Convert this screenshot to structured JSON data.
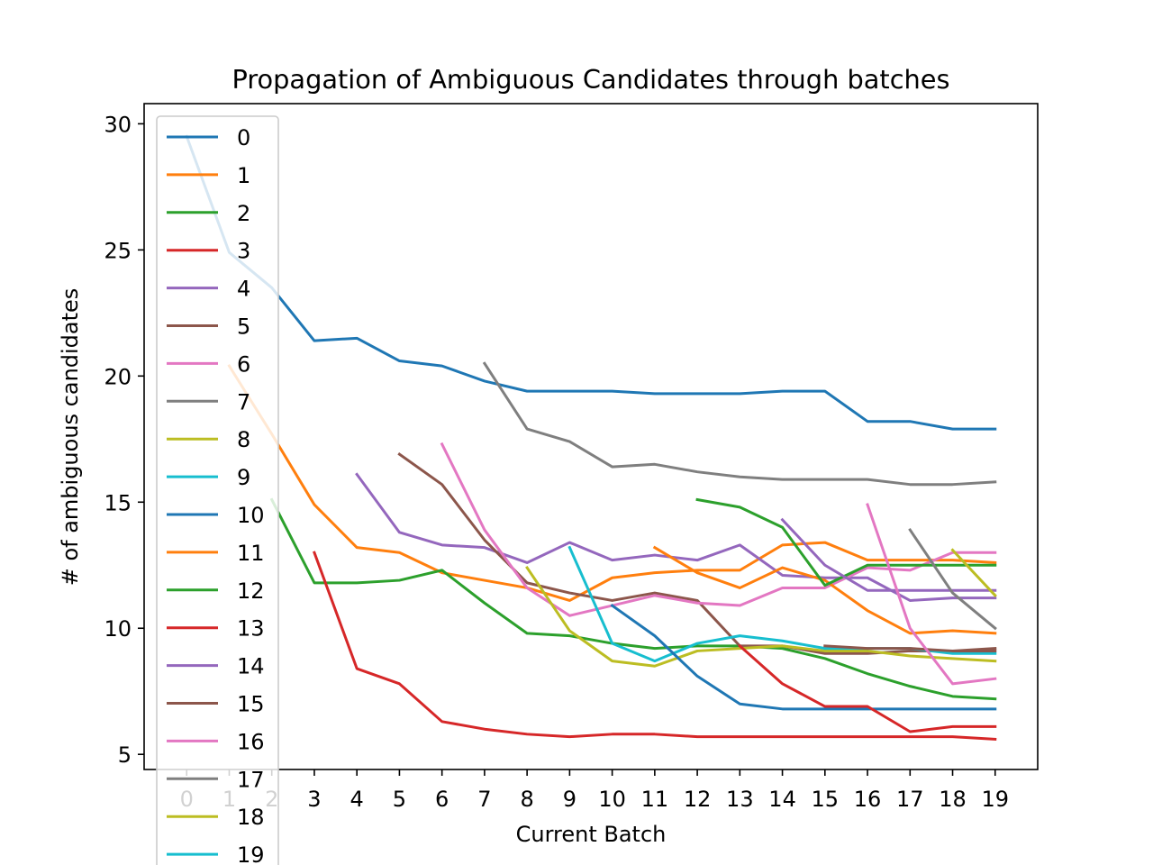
{
  "chart_data": {
    "type": "line",
    "title": "Propagation of Ambiguous Candidates through batches",
    "xlabel": "Current Batch",
    "ylabel": "# of ambiguous candidates",
    "xlim": [
      -1,
      20
    ],
    "ylim": [
      4.4,
      30.8
    ],
    "x_ticks": [
      "0",
      "1",
      "2",
      "3",
      "4",
      "5",
      "6",
      "7",
      "8",
      "9",
      "10",
      "11",
      "12",
      "13",
      "14",
      "15",
      "16",
      "17",
      "18",
      "19"
    ],
    "y_ticks": [
      5,
      10,
      15,
      20,
      25,
      30
    ],
    "grid": false,
    "legend_position": "top-left",
    "series": [
      {
        "name": "0",
        "color": "#1f77b4",
        "start": 0,
        "values": [
          29.5,
          24.9,
          23.5,
          21.4,
          21.5,
          20.6,
          20.4,
          19.8,
          19.4,
          19.4,
          19.4,
          19.3,
          19.3,
          19.3,
          19.4,
          19.4,
          18.2,
          18.2,
          17.9,
          17.9
        ]
      },
      {
        "name": "1",
        "color": "#ff7f0e",
        "start": 1,
        "values": [
          20.4,
          17.7,
          14.9,
          13.2,
          13.0,
          12.2,
          11.9,
          11.6,
          11.1,
          12.0,
          12.2,
          12.3,
          12.3,
          13.3,
          13.4,
          12.7,
          12.7,
          12.7,
          12.6
        ]
      },
      {
        "name": "2",
        "color": "#2ca02c",
        "start": 2,
        "values": [
          15.1,
          11.8,
          11.8,
          11.9,
          12.3,
          11.0,
          9.8,
          9.7,
          9.4,
          9.2,
          9.3,
          9.3,
          9.2,
          8.8,
          8.2,
          7.7,
          7.3,
          7.2
        ]
      },
      {
        "name": "3",
        "color": "#d62728",
        "start": 3,
        "values": [
          13.0,
          8.4,
          7.8,
          6.3,
          6.0,
          5.8,
          5.7,
          5.8,
          5.8,
          5.7,
          5.7,
          5.7,
          5.7,
          5.7,
          5.7,
          5.7,
          5.6
        ]
      },
      {
        "name": "4",
        "color": "#9467bd",
        "start": 4,
        "values": [
          16.1,
          13.8,
          13.3,
          13.2,
          12.6,
          13.4,
          12.7,
          12.9,
          12.7,
          13.3,
          12.1,
          12.0,
          12.0,
          11.1,
          11.2,
          11.2
        ]
      },
      {
        "name": "5",
        "color": "#8c564b",
        "start": 5,
        "values": [
          16.9,
          15.7,
          13.5,
          11.8,
          11.4,
          11.1,
          11.4,
          11.1,
          9.3,
          9.3,
          9.0,
          9.0,
          9.1,
          9.1,
          9.2
        ]
      },
      {
        "name": "6",
        "color": "#e377c2",
        "start": 6,
        "values": [
          17.3,
          13.9,
          11.6,
          10.5,
          10.9,
          11.3,
          11.0,
          10.9,
          11.6,
          11.6,
          12.4,
          12.3,
          13.0,
          13.0
        ]
      },
      {
        "name": "7",
        "color": "#7f7f7f",
        "start": 7,
        "values": [
          20.5,
          17.9,
          17.4,
          16.4,
          16.5,
          16.2,
          16.0,
          15.9,
          15.9,
          15.9,
          15.7,
          15.7,
          15.8
        ]
      },
      {
        "name": "8",
        "color": "#bcbd22",
        "start": 8,
        "values": [
          12.4,
          9.9,
          8.7,
          8.5,
          9.1,
          9.2,
          9.3,
          9.1,
          9.1,
          8.9,
          8.8,
          8.7
        ]
      },
      {
        "name": "9",
        "color": "#17becf",
        "start": 9,
        "values": [
          13.2,
          9.4,
          8.7,
          9.4,
          9.7,
          9.5,
          9.2,
          9.2,
          9.2,
          9.0,
          9.0
        ]
      },
      {
        "name": "10",
        "color": "#1f77b4",
        "start": 10,
        "values": [
          10.9,
          9.7,
          8.1,
          7.0,
          6.8,
          6.8,
          6.8,
          6.8,
          6.8,
          6.8
        ]
      },
      {
        "name": "11",
        "color": "#ff7f0e",
        "start": 11,
        "values": [
          13.2,
          12.2,
          11.6,
          12.4,
          11.9,
          10.7,
          9.8,
          9.9,
          9.8
        ]
      },
      {
        "name": "12",
        "color": "#2ca02c",
        "start": 12,
        "values": [
          15.1,
          14.8,
          14.0,
          11.7,
          12.5,
          12.5,
          12.5,
          12.5
        ]
      },
      {
        "name": "13",
        "color": "#d62728",
        "start": 13,
        "values": [
          9.3,
          7.8,
          6.9,
          6.9,
          5.9,
          6.1,
          6.1
        ]
      },
      {
        "name": "14",
        "color": "#9467bd",
        "start": 14,
        "values": [
          14.3,
          12.5,
          11.5,
          11.5,
          11.5,
          11.5
        ]
      },
      {
        "name": "15",
        "color": "#8c564b",
        "start": 15,
        "values": [
          9.3,
          9.2,
          9.2,
          9.1,
          9.1
        ]
      },
      {
        "name": "16",
        "color": "#e377c2",
        "start": 16,
        "values": [
          14.9,
          10.0,
          7.8,
          8.0
        ]
      },
      {
        "name": "17",
        "color": "#7f7f7f",
        "start": 17,
        "values": [
          13.9,
          11.4,
          10.0
        ]
      },
      {
        "name": "18",
        "color": "#bcbd22",
        "start": 18,
        "values": [
          13.1,
          11.3
        ]
      },
      {
        "name": "19",
        "color": "#17becf",
        "start": 19,
        "values": [
          9.1
        ]
      }
    ]
  }
}
